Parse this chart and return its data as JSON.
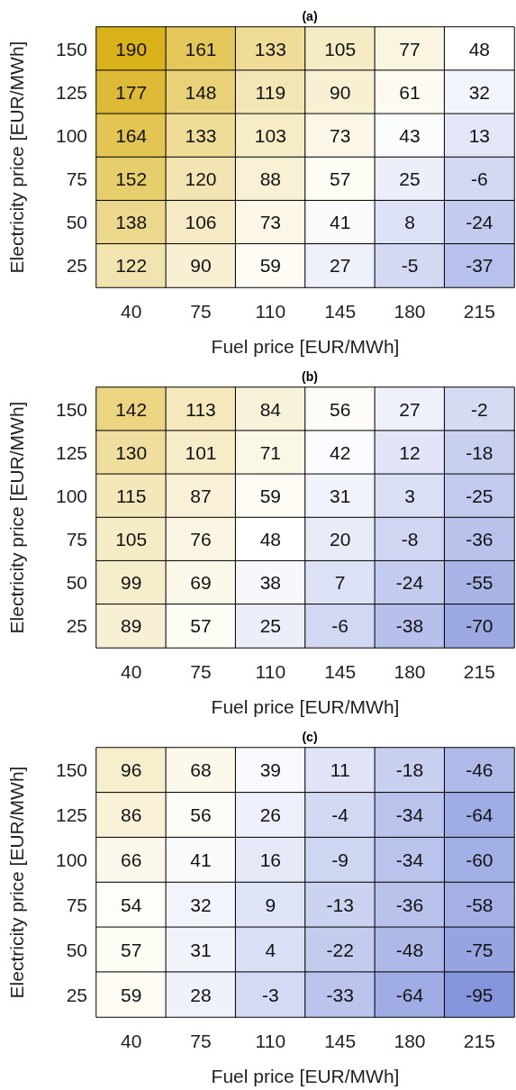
{
  "chart_data": [
    {
      "type": "heatmap",
      "title": "(a)",
      "xlabel": "Fuel price [EUR/MWh]",
      "ylabel": "Electricity price [EUR/MWh]",
      "categories": [
        "40",
        "75",
        "110",
        "145",
        "180",
        "215"
      ],
      "y_categories": [
        "150",
        "125",
        "100",
        "75",
        "50",
        "25"
      ],
      "data_labels": true,
      "cells": [
        [
          190,
          161,
          133,
          105,
          77,
          48
        ],
        [
          177,
          148,
          119,
          90,
          61,
          32
        ],
        [
          164,
          133,
          103,
          73,
          43,
          13
        ],
        [
          152,
          120,
          88,
          57,
          25,
          -6
        ],
        [
          138,
          106,
          73,
          41,
          8,
          -24
        ],
        [
          122,
          90,
          59,
          27,
          -5,
          -37
        ]
      ]
    },
    {
      "type": "heatmap",
      "title": "(b)",
      "xlabel": "Fuel price [EUR/MWh]",
      "ylabel": "Electricity price [EUR/MWh]",
      "categories": [
        "40",
        "75",
        "110",
        "145",
        "180",
        "215"
      ],
      "y_categories": [
        "150",
        "125",
        "100",
        "75",
        "50",
        "25"
      ],
      "data_labels": true,
      "cells": [
        [
          142,
          113,
          84,
          56,
          27,
          -2
        ],
        [
          130,
          101,
          71,
          42,
          12,
          -18
        ],
        [
          115,
          87,
          59,
          31,
          3,
          -25
        ],
        [
          105,
          76,
          48,
          20,
          -8,
          -36
        ],
        [
          99,
          69,
          38,
          7,
          -24,
          -55
        ],
        [
          89,
          57,
          25,
          -6,
          -38,
          -70
        ]
      ]
    },
    {
      "type": "heatmap",
      "title": "(c)",
      "xlabel": "Fuel price [EUR/MWh]",
      "ylabel": "Electricity price [EUR/MWh]",
      "categories": [
        "40",
        "75",
        "110",
        "145",
        "180",
        "215"
      ],
      "y_categories": [
        "150",
        "125",
        "100",
        "75",
        "50",
        "25"
      ],
      "data_labels": true,
      "cells": [
        [
          96,
          68,
          39,
          11,
          -18,
          -46
        ],
        [
          86,
          56,
          26,
          -4,
          -34,
          -64
        ],
        [
          66,
          41,
          16,
          -9,
          -34,
          -60
        ],
        [
          54,
          32,
          9,
          -13,
          -36,
          -58
        ],
        [
          57,
          31,
          4,
          -22,
          -48,
          -75
        ],
        [
          59,
          28,
          -3,
          -33,
          -64,
          -95
        ]
      ]
    }
  ]
}
